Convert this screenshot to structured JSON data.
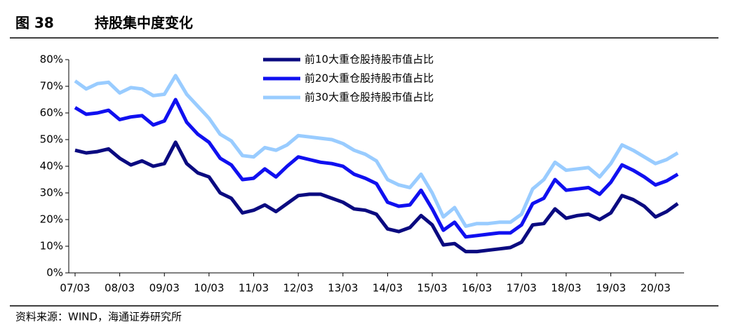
{
  "chart_data": {
    "type": "line",
    "figure_label": "图 38",
    "title": "持股集中度变化",
    "source": "资料来源：WIND，海通证券研究所",
    "categories": [
      "07/03",
      null,
      null,
      null,
      "08/03",
      null,
      null,
      null,
      "09/03",
      null,
      null,
      null,
      "10/03",
      null,
      null,
      null,
      "11/03",
      null,
      null,
      null,
      "12/03",
      null,
      null,
      null,
      "13/03",
      null,
      null,
      null,
      "14/03",
      null,
      null,
      null,
      "15/03",
      null,
      null,
      null,
      "16/03",
      null,
      null,
      null,
      "17/03",
      null,
      null,
      null,
      "18/03",
      null,
      null,
      null,
      "19/03",
      null,
      null,
      null,
      "20/03",
      null,
      null
    ],
    "series": [
      {
        "name": "前10大重仓股持股市值占比",
        "color": "#0a0a80",
        "values": [
          46,
          45,
          45.5,
          46.5,
          43,
          40.5,
          42,
          40,
          41,
          49,
          41,
          37.5,
          36,
          30,
          28,
          22.5,
          23.5,
          25.5,
          23,
          26,
          29,
          29.5,
          29.5,
          28,
          26.5,
          24,
          23.5,
          22,
          16.5,
          15.5,
          17,
          21.5,
          18,
          10.5,
          11,
          8,
          8,
          8.5,
          9,
          9.5,
          11.5,
          18,
          18.5,
          24,
          20.5,
          21.5,
          22,
          20,
          22.5,
          29,
          27.5,
          25,
          21,
          23,
          26
        ]
      },
      {
        "name": "前20大重仓股持股市值占比",
        "color": "#1010f0",
        "values": [
          62,
          59.5,
          60,
          61,
          57.5,
          58.5,
          59,
          55.5,
          57,
          65,
          56.5,
          52,
          49,
          43,
          40.5,
          35,
          35.5,
          39,
          36,
          40,
          43.5,
          42.5,
          41.5,
          41,
          40,
          37,
          35.5,
          33.5,
          26.5,
          25,
          25.5,
          31,
          24,
          16,
          19,
          13.5,
          14,
          14.5,
          15,
          15,
          18,
          26,
          28,
          35,
          31,
          31.5,
          32,
          29.5,
          34,
          40.5,
          38.5,
          36,
          33,
          34.5,
          37
        ]
      },
      {
        "name": "前30大重仓股持股市值占比",
        "color": "#99ccff",
        "values": [
          72,
          69,
          71,
          71.5,
          67.5,
          69.5,
          69,
          66.5,
          67,
          74,
          67,
          62.5,
          58,
          52,
          49.5,
          44,
          43.5,
          47,
          46,
          48,
          51.5,
          51,
          50.5,
          50,
          48.5,
          46,
          44.5,
          42,
          35,
          33,
          32,
          37,
          30,
          21,
          24.5,
          17.5,
          18.5,
          18.5,
          19,
          19,
          22,
          31.5,
          35,
          41.5,
          38.5,
          39,
          39.5,
          36,
          41,
          48,
          46,
          43.5,
          41,
          42.5,
          45
        ]
      }
    ],
    "ylim": [
      0,
      80
    ],
    "yticks": [
      {
        "value": 0,
        "label": "0%"
      },
      {
        "value": 10,
        "label": "10%"
      },
      {
        "value": 20,
        "label": "20%"
      },
      {
        "value": 30,
        "label": "30%"
      },
      {
        "value": 40,
        "label": "40%"
      },
      {
        "value": 50,
        "label": "50%"
      },
      {
        "value": 60,
        "label": "60%"
      },
      {
        "value": 70,
        "label": "70%"
      },
      {
        "value": 80,
        "label": "80%"
      }
    ],
    "legend": "top"
  }
}
